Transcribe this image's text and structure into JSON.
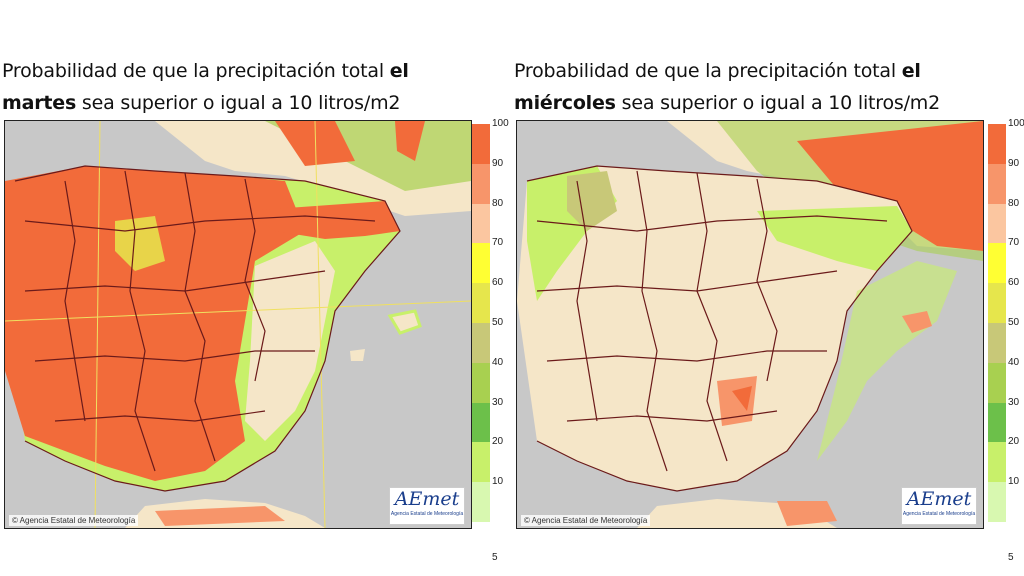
{
  "left_panel": {
    "title_plain_1": "Probabilidad de que la precipitación total ",
    "title_bold_1": "el",
    "title_bold_2": "martes",
    "title_plain_2": " sea superior o igual a 10 litros/m2",
    "copyright": "© Agencia Estatal de Meteorología",
    "logo_text": "AEmet",
    "logo_sub": "Agencia Estatal de Meteorología"
  },
  "right_panel": {
    "title_plain_1": "Probabilidad de que la precipitación total ",
    "title_bold_1": "el",
    "title_bold_2": "miércoles",
    "title_plain_2": " sea superior o igual a 10 litros/m2",
    "copyright": "© Agencia Estatal de Meteorología",
    "logo_text": "AEmet",
    "logo_sub": "Agencia Estatal de Meteorología"
  },
  "legend": {
    "ticks": [
      "100",
      "90",
      "80",
      "70",
      "60",
      "50",
      "40",
      "30",
      "20",
      "10",
      "5"
    ],
    "colors": [
      "#f26b3a",
      "#f7956a",
      "#fbc6a0",
      "#ffff33",
      "#e6e64c",
      "#c8c878",
      "#a8d050",
      "#6cc04a",
      "#c8f06a",
      "#d8f8b0"
    ]
  },
  "colors": {
    "sea": "#c8c8c8",
    "land_low": "#f5e6c8",
    "high": "#f26b3a"
  }
}
